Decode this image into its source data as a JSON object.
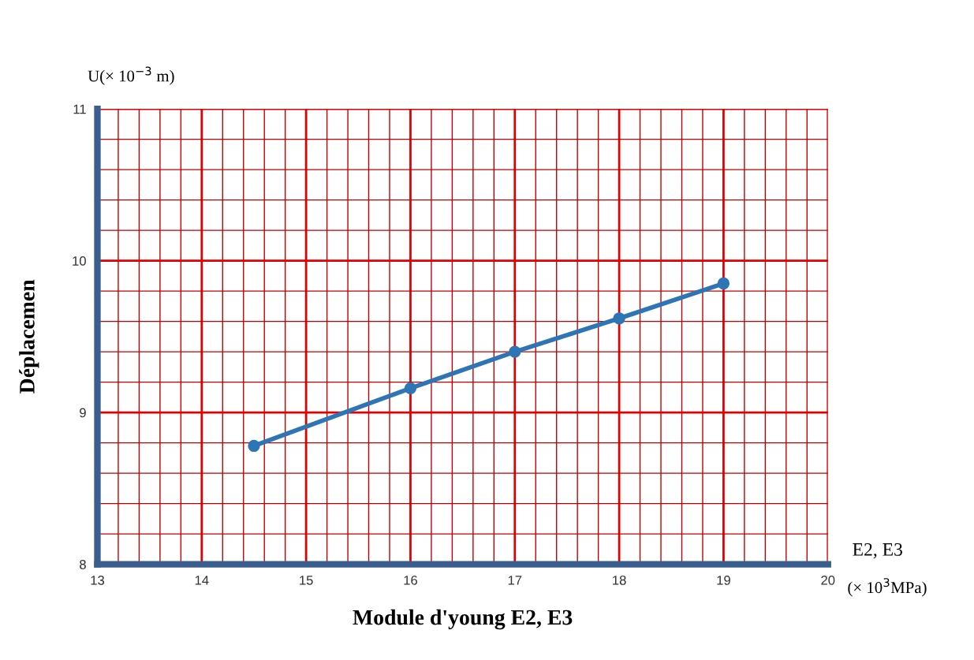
{
  "chart_data": {
    "type": "line",
    "ylabel": "Déplacemen",
    "xlabel": "Module d'young E2, E3",
    "annotations": [
      "U(× 10$^{−3}$ m)",
      "E2, E3",
      "(× 10$^{3}$MPa)"
    ],
    "x": [
      14.5,
      16,
      17,
      18,
      19
    ],
    "series": [
      {
        "color": "#2e75b6",
        "values": [
          8.78,
          9.16,
          9.4,
          9.62,
          9.85
        ]
      }
    ],
    "xlim": [
      13,
      20
    ],
    "xticks": [
      13,
      {
        "value": 13.2,
        "label": null
      },
      {
        "value": 13.4,
        "label": null
      },
      {
        "value": 13.6,
        "label": null
      },
      {
        "value": 13.8,
        "label": null
      },
      14,
      {
        "value": 14.2,
        "label": null
      },
      {
        "value": 14.4,
        "label": null
      },
      {
        "value": 14.6,
        "label": null
      },
      {
        "value": 14.8,
        "label": null
      },
      15,
      {
        "value": 15.2,
        "label": null
      },
      {
        "value": 15.4,
        "label": null
      },
      {
        "value": 15.6,
        "label": null
      },
      {
        "value": 15.8,
        "label": null
      },
      16,
      {
        "value": 16.2,
        "label": null
      },
      {
        "value": 16.4,
        "label": null
      },
      {
        "value": 16.6,
        "label": null
      },
      {
        "value": 16.8,
        "label": null
      },
      17,
      {
        "value": 17.2,
        "label": null
      },
      {
        "value": 17.4,
        "label": null
      },
      {
        "value": 17.6,
        "label": null
      },
      {
        "value": 17.8,
        "label": null
      },
      18,
      {
        "value": 18.2,
        "label": null
      },
      {
        "value": 18.4,
        "label": null
      },
      {
        "value": 18.6,
        "label": null
      },
      {
        "value": 18.8,
        "label": null
      },
      19,
      {
        "value": 19.2,
        "label": null
      },
      {
        "value": 19.4,
        "label": null
      },
      {
        "value": 19.6,
        "label": null
      },
      {
        "value": 19.8,
        "label": null
      },
      20
    ],
    "ylim": [
      8,
      11
    ],
    "yticks": [
      8,
      {
        "value": 8.2,
        "label": null
      },
      {
        "value": 8.4,
        "label": null
      },
      {
        "value": 8.6,
        "label": null
      },
      {
        "value": 8.8,
        "label": null
      },
      9,
      {
        "value": 9.2,
        "label": null
      },
      {
        "value": 9.4,
        "label": null
      },
      {
        "value": 9.6,
        "label": null
      },
      {
        "value": 9.8,
        "label": null
      },
      10,
      {
        "value": 10.2,
        "label": null
      },
      {
        "value": 10.4,
        "label": null
      },
      {
        "value": 10.6,
        "label": null
      },
      {
        "value": 10.8,
        "label": null
      },
      11
    ],
    "grid": true,
    "marker": "circle",
    "line_style": "solid"
  }
}
